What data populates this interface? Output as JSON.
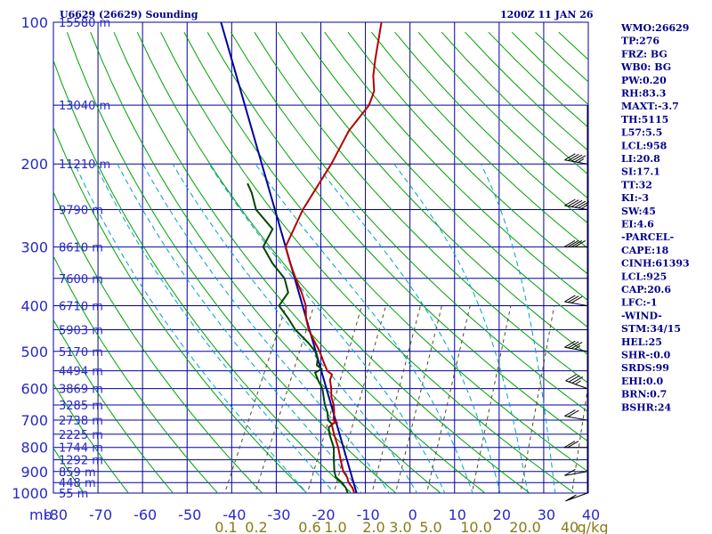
{
  "header": {
    "station": "U6629 (26629) Sounding",
    "time": "1200Z 11 JAN 26"
  },
  "colors": {
    "grid": "#0000a0",
    "dry_adiabat": "#00a000",
    "moist_adiabat": "#00a0c8",
    "mixing_ratio": "#505020",
    "temperature": "#b40000",
    "dewpoint": "#004600",
    "parcel": "#0000a0",
    "text": "#00008b",
    "axis_text": "#2828c8",
    "mr_text": "#8a7a14"
  },
  "indices": [
    "WMO:26629",
    "TP:276",
    "FRZ: BG",
    "WB0: BG",
    "PW:0.20",
    "RH:83.3",
    "MAXT:-3.7",
    "TH:5115",
    "L57:5.5",
    "LCL:958",
    "LI:20.8",
    "SI:17.1",
    "TT:32",
    "KI:-3",
    "SW:45",
    "EI:4.6",
    "-PARCEL-",
    "CAPE:18",
    "CINH:61393",
    "LCL:925",
    "CAP:20.6",
    "LFC:-1",
    "-WIND-",
    "STM:34/15",
    "HEL:25",
    "SHR-:0.0",
    "SRDS:99",
    "EHI:0.0",
    "BRN:0.7",
    "BSHR:24"
  ],
  "chart_data": {
    "type": "skew-t",
    "title": "U6629 (26629) Sounding",
    "valid_time": "1200Z 11 JAN 26",
    "x_unit_label": "mb",
    "pressure_ticks": [
      100,
      200,
      300,
      400,
      500,
      600,
      700,
      800,
      900,
      1000
    ],
    "temperature_ticks": [
      -80,
      -70,
      -60,
      -50,
      -40,
      -30,
      -20,
      -10,
      0,
      10,
      20,
      30,
      40
    ],
    "temperature_range": [
      -80,
      40
    ],
    "pressure_range": [
      100,
      1000
    ],
    "height_levels": [
      {
        "p": 100,
        "label": "15580 m"
      },
      {
        "p": 150,
        "label": "13040 m"
      },
      {
        "p": 200,
        "label": "11210 m"
      },
      {
        "p": 250,
        "label": "9790 m"
      },
      {
        "p": 300,
        "label": "8610 m"
      },
      {
        "p": 350,
        "label": "7600 m"
      },
      {
        "p": 400,
        "label": "6710 m"
      },
      {
        "p": 450,
        "label": "5903 m"
      },
      {
        "p": 500,
        "label": "5170 m"
      },
      {
        "p": 550,
        "label": "4494 m"
      },
      {
        "p": 600,
        "label": "3869 m"
      },
      {
        "p": 650,
        "label": "3285 m"
      },
      {
        "p": 700,
        "label": "2738 m"
      },
      {
        "p": 750,
        "label": "2225 m"
      },
      {
        "p": 800,
        "label": "1744 m"
      },
      {
        "p": 850,
        "label": "1292 m"
      },
      {
        "p": 900,
        "label": "859 m"
      },
      {
        "p": 950,
        "label": "448 m"
      },
      {
        "p": 1000,
        "label": "55 m"
      }
    ],
    "mixing_ratio_labels": [
      "0.1",
      "0.2",
      "0.6",
      "1.0",
      "2.0",
      "3.0",
      "5.0",
      "10.0",
      "20.0",
      "40",
      "g/kg"
    ],
    "mixing_ratio_lines": [
      0.1,
      0.2,
      0.6,
      1.0,
      2.0,
      3.0,
      5.0,
      10.0,
      20.0,
      40.0
    ],
    "temperature_profile": [
      {
        "p": 1012,
        "t": -12.0
      },
      {
        "p": 1000,
        "t": -12.5
      },
      {
        "p": 975,
        "t": -13.5
      },
      {
        "p": 950,
        "t": -15.0
      },
      {
        "p": 925,
        "t": -16.0
      },
      {
        "p": 900,
        "t": -17.5
      },
      {
        "p": 850,
        "t": -19.5
      },
      {
        "p": 800,
        "t": -21.5
      },
      {
        "p": 750,
        "t": -24.0
      },
      {
        "p": 712,
        "t": -25.8
      },
      {
        "p": 708,
        "t": -24.8
      },
      {
        "p": 700,
        "t": -25.8
      },
      {
        "p": 675,
        "t": -26.5
      },
      {
        "p": 650,
        "t": -27.5
      },
      {
        "p": 625,
        "t": -29.0
      },
      {
        "p": 600,
        "t": -30.0
      },
      {
        "p": 575,
        "t": -31.3
      },
      {
        "p": 560,
        "t": -31.5
      },
      {
        "p": 550,
        "t": -33.0
      },
      {
        "p": 525,
        "t": -35.0
      },
      {
        "p": 500,
        "t": -37.0
      },
      {
        "p": 475,
        "t": -39.5
      },
      {
        "p": 450,
        "t": -42.0
      },
      {
        "p": 425,
        "t": -44.0
      },
      {
        "p": 400,
        "t": -45.5
      },
      {
        "p": 375,
        "t": -48.0
      },
      {
        "p": 350,
        "t": -51.0
      },
      {
        "p": 325,
        "t": -54.0
      },
      {
        "p": 300,
        "t": -57.0
      },
      {
        "p": 250,
        "t": -57.5
      },
      {
        "p": 200,
        "t": -56.5
      },
      {
        "p": 170,
        "t": -56.5
      },
      {
        "p": 150,
        "t": -55.0
      },
      {
        "p": 140,
        "t": -55.5
      },
      {
        "p": 130,
        "t": -57.5
      },
      {
        "p": 120,
        "t": -59.0
      },
      {
        "p": 100,
        "t": -62.0
      }
    ],
    "dewpoint_profile": [
      {
        "p": 1012,
        "t": -13.5
      },
      {
        "p": 1000,
        "t": -14.0
      },
      {
        "p": 975,
        "t": -15.0
      },
      {
        "p": 950,
        "t": -16.5
      },
      {
        "p": 925,
        "t": -18.5
      },
      {
        "p": 900,
        "t": -19.5
      },
      {
        "p": 850,
        "t": -21.0
      },
      {
        "p": 800,
        "t": -22.5
      },
      {
        "p": 750,
        "t": -25.0
      },
      {
        "p": 725,
        "t": -26.0
      },
      {
        "p": 715,
        "t": -25.5
      },
      {
        "p": 700,
        "t": -27.0
      },
      {
        "p": 675,
        "t": -28.0
      },
      {
        "p": 650,
        "t": -29.5
      },
      {
        "p": 600,
        "t": -32.0
      },
      {
        "p": 575,
        "t": -34.0
      },
      {
        "p": 555,
        "t": -35.5
      },
      {
        "p": 545,
        "t": -34.5
      },
      {
        "p": 535,
        "t": -36.0
      },
      {
        "p": 520,
        "t": -36.5
      },
      {
        "p": 500,
        "t": -38.0
      },
      {
        "p": 480,
        "t": -40.5
      },
      {
        "p": 450,
        "t": -45.0
      },
      {
        "p": 425,
        "t": -48.0
      },
      {
        "p": 400,
        "t": -51.5
      },
      {
        "p": 375,
        "t": -51.0
      },
      {
        "p": 350,
        "t": -53.5
      },
      {
        "p": 325,
        "t": -58.0
      },
      {
        "p": 300,
        "t": -62.0
      },
      {
        "p": 275,
        "t": -62.0
      },
      {
        "p": 250,
        "t": -68.0
      },
      {
        "p": 230,
        "t": -71.0
      },
      {
        "p": 220,
        "t": -73.0
      }
    ],
    "parcel_path": [
      {
        "p": 1000,
        "t": -12.0
      },
      {
        "p": 100,
        "t": -98.0
      }
    ],
    "wind_barbs": [
      {
        "p": 1000,
        "dir": 250,
        "spd": 5
      },
      {
        "p": 900,
        "dir": 260,
        "spd": 10
      },
      {
        "p": 800,
        "dir": 270,
        "spd": 20
      },
      {
        "p": 700,
        "dir": 280,
        "spd": 20
      },
      {
        "p": 600,
        "dir": 290,
        "spd": 25
      },
      {
        "p": 500,
        "dir": 280,
        "spd": 25
      },
      {
        "p": 400,
        "dir": 280,
        "spd": 30
      },
      {
        "p": 300,
        "dir": 270,
        "spd": 40
      },
      {
        "p": 250,
        "dir": 280,
        "spd": 45
      },
      {
        "p": 200,
        "dir": 280,
        "spd": 35
      }
    ]
  }
}
